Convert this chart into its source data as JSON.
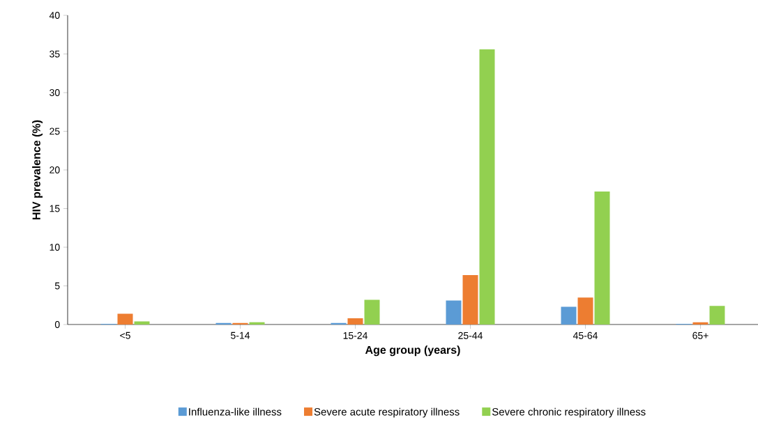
{
  "chart_data": {
    "type": "bar",
    "xlabel": "Age group (years)",
    "ylabel": "HIV prevalence (%)",
    "categories": [
      "<5",
      "5-14",
      "15-24",
      "25-44",
      "45-64",
      "65+"
    ],
    "series": [
      {
        "name": "Influenza-like illness",
        "color": "#5b9bd5",
        "values": [
          0.1,
          0.2,
          0.2,
          3.1,
          2.3,
          0.1
        ]
      },
      {
        "name": "Severe acute respiratory illness",
        "color": "#ed7d31",
        "values": [
          1.4,
          0.2,
          0.8,
          6.4,
          3.5,
          0.3
        ]
      },
      {
        "name": "Severe chronic respiratory illness",
        "color": "#92d050",
        "values": [
          0.4,
          0.3,
          3.2,
          35.6,
          17.2,
          2.4
        ]
      }
    ],
    "ylim": [
      0,
      40
    ],
    "yticks": [
      0,
      5,
      10,
      15,
      20,
      25,
      30,
      35,
      40
    ],
    "grid": false,
    "legend": "bottom"
  }
}
